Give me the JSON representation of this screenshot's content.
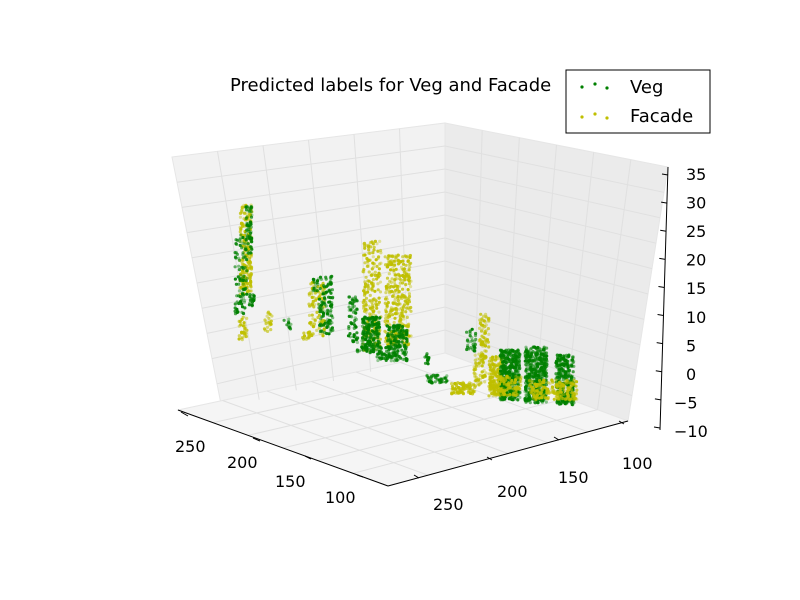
{
  "chart_data": {
    "type": "scatter",
    "projection": "3d",
    "title": "Predicted labels for Veg and Facade",
    "xlabel": "",
    "ylabel": "",
    "zlabel": "",
    "grid": true,
    "legend_position": "top-right",
    "xlim": [
      75,
      275
    ],
    "ylim": [
      75,
      275
    ],
    "zlim": [
      -10,
      35
    ],
    "x_ticks": [
      "250",
      "200",
      "150",
      "100"
    ],
    "y_ticks": [
      "250",
      "200",
      "150",
      "100"
    ],
    "z_ticks": [
      "35",
      "30",
      "25",
      "20",
      "15",
      "10",
      "5",
      "0",
      "−5",
      "−10"
    ],
    "series": [
      {
        "name": "Veg",
        "color": "#008000"
      },
      {
        "name": "Facade",
        "color": "#bfbf00"
      }
    ]
  }
}
